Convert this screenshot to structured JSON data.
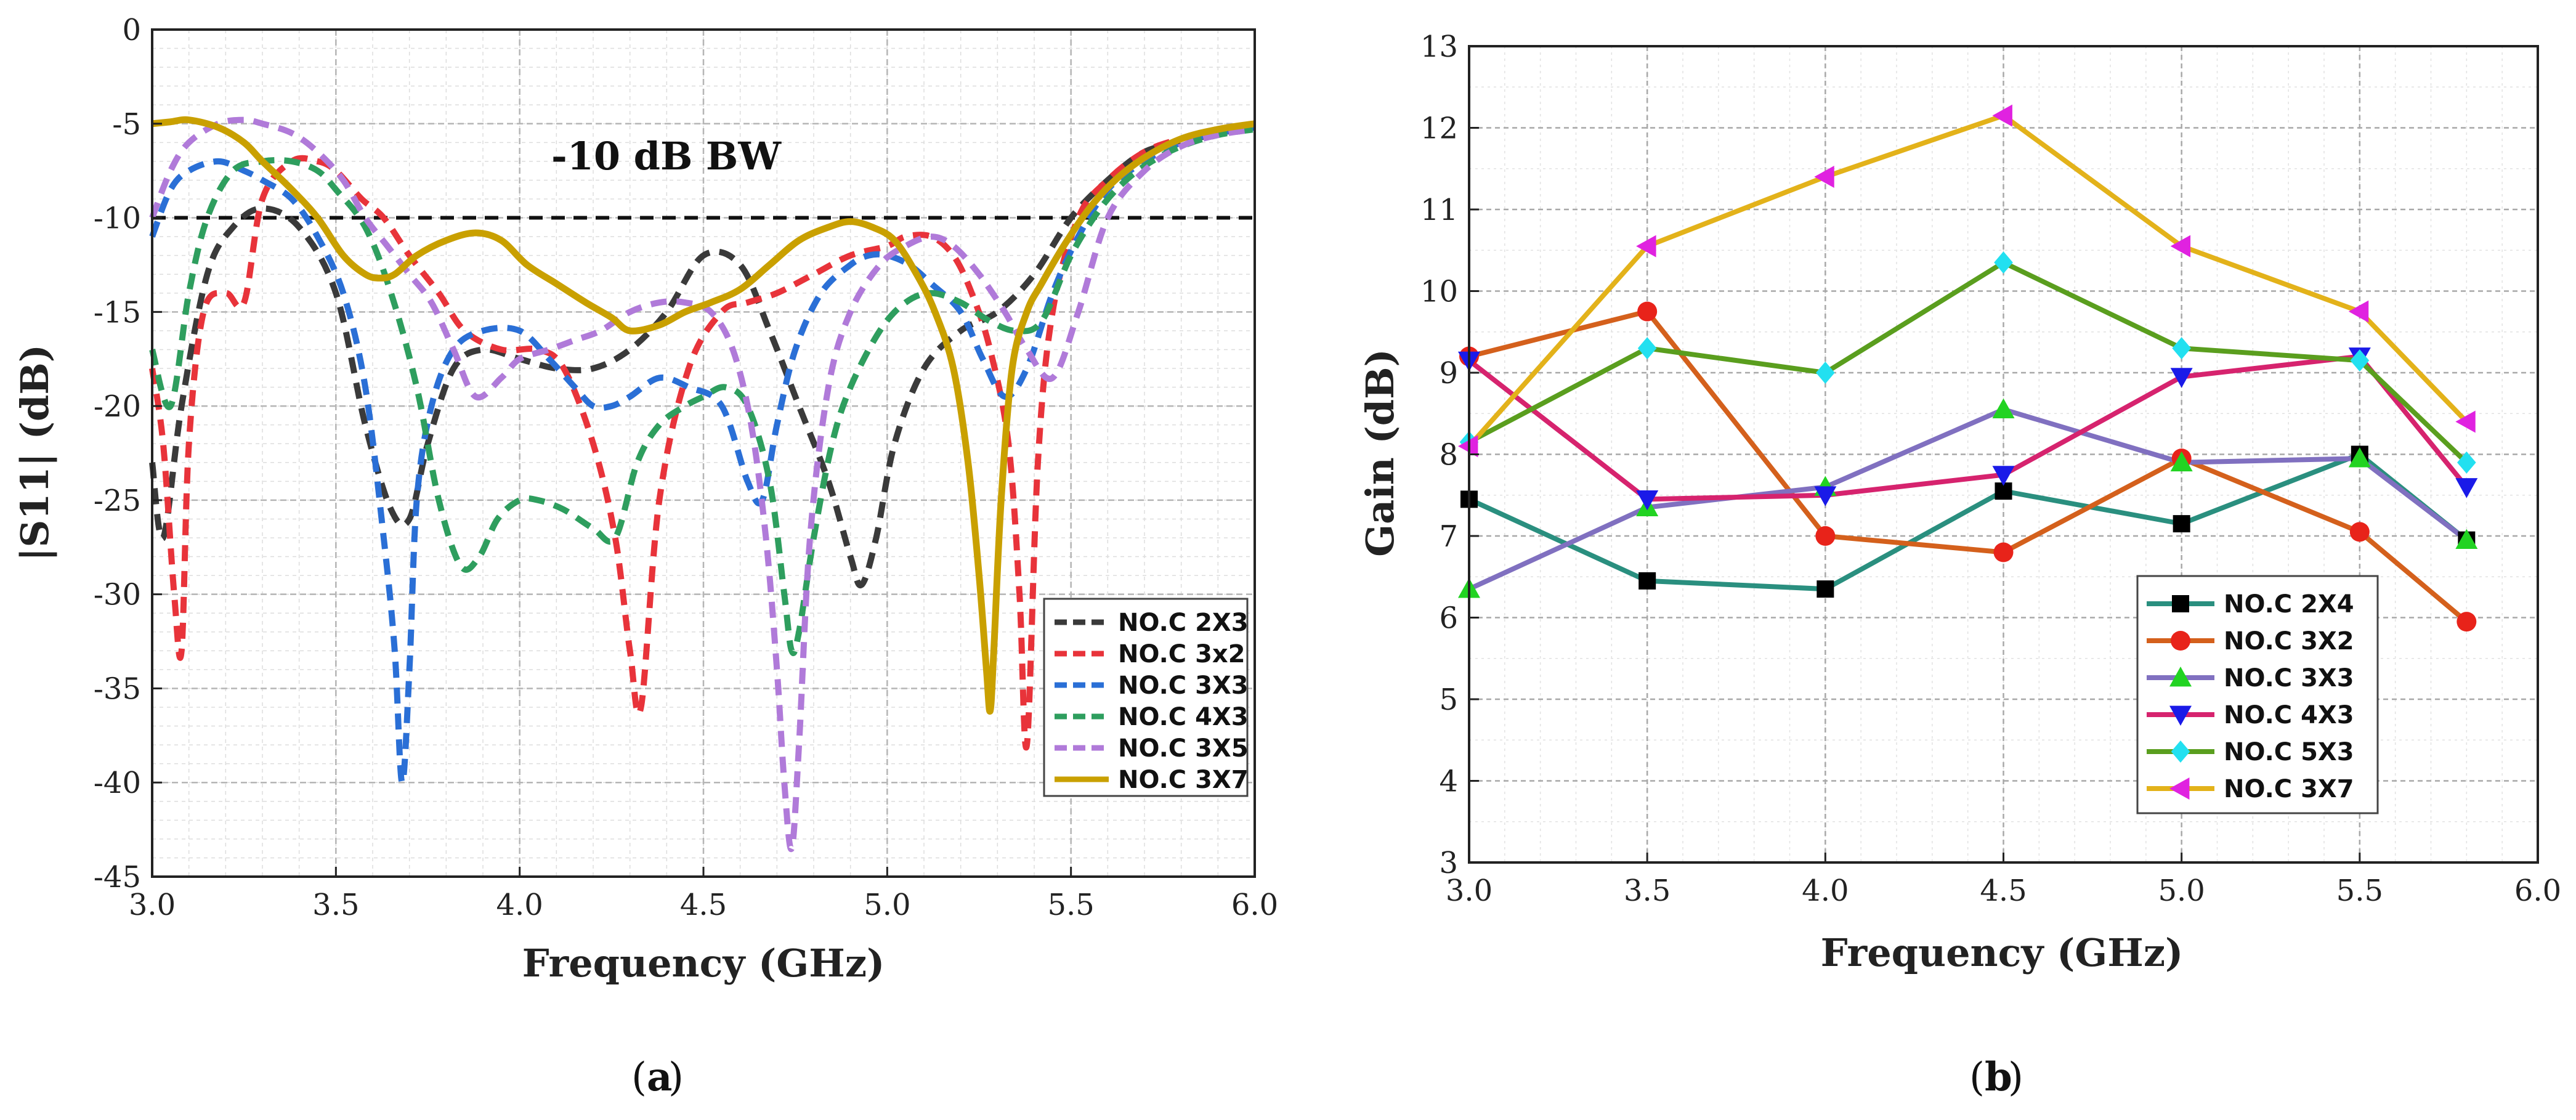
{
  "chart_data": [
    {
      "id": "a",
      "type": "line",
      "panel_label": "a",
      "xlabel": "Frequency (GHz)",
      "ylabel": "|S11| (dB)",
      "xlim": [
        3.0,
        6.0
      ],
      "ylim": [
        -45,
        0
      ],
      "x_ticks": [
        "3.0",
        "3.5",
        "4.0",
        "4.5",
        "5.0",
        "5.5",
        "6.0"
      ],
      "y_ticks": [
        "0",
        "-5",
        "-10",
        "-15",
        "-20",
        "-25",
        "-30",
        "-35",
        "-40",
        "-45"
      ],
      "grid": true,
      "reference_line": {
        "y": -10,
        "style": "dashed",
        "color": "#111111"
      },
      "annotation": "-10 dB BW",
      "legend_position": "bottom-right",
      "series": [
        {
          "name": "NO.C 2X3",
          "color": "#3a3a3a",
          "dash": "dashed",
          "x": [
            3.0,
            3.03,
            3.08,
            3.15,
            3.22,
            3.3,
            3.4,
            3.5,
            3.58,
            3.65,
            3.7,
            3.75,
            3.82,
            3.9,
            4.0,
            4.1,
            4.2,
            4.3,
            4.4,
            4.5,
            4.6,
            4.68,
            4.76,
            4.84,
            4.9,
            4.93,
            4.97,
            5.02,
            5.1,
            5.2,
            5.3,
            5.4,
            5.5,
            5.6,
            5.7,
            5.8,
            5.9,
            6.0
          ],
          "y": [
            -23,
            -27,
            -20,
            -13,
            -10.5,
            -9.5,
            -10.5,
            -14,
            -21,
            -25.5,
            -26,
            -22,
            -18,
            -17,
            -17.5,
            -18,
            -18,
            -17,
            -15,
            -12,
            -12.5,
            -16,
            -20,
            -24,
            -28,
            -29.5,
            -27,
            -22,
            -18,
            -16,
            -15,
            -13,
            -10,
            -8,
            -6.5,
            -6,
            -5.5,
            -5.2
          ]
        },
        {
          "name": "NO.C 3x2",
          "color": "#e8333a",
          "dash": "dashed",
          "x": [
            3.0,
            3.03,
            3.06,
            3.08,
            3.1,
            3.14,
            3.2,
            3.25,
            3.3,
            3.38,
            3.45,
            3.5,
            3.57,
            3.63,
            3.7,
            3.78,
            3.85,
            3.95,
            4.05,
            4.12,
            4.2,
            4.26,
            4.3,
            4.33,
            4.38,
            4.46,
            4.55,
            4.62,
            4.7,
            4.8,
            4.9,
            5.0,
            5.05,
            5.12,
            5.18,
            5.23,
            5.28,
            5.33,
            5.36,
            5.38,
            5.41,
            5.45,
            5.52,
            5.6,
            5.7,
            5.8,
            5.9,
            6.0
          ],
          "y": [
            -18,
            -22,
            -30,
            -33,
            -22,
            -15,
            -14,
            -14.5,
            -9,
            -7,
            -7,
            -7.5,
            -9,
            -10,
            -12,
            -14,
            -16,
            -17,
            -17,
            -18,
            -22,
            -27,
            -33,
            -36,
            -25,
            -18,
            -15,
            -14.5,
            -14,
            -13,
            -12,
            -11.5,
            -11,
            -11,
            -12,
            -14,
            -17,
            -22,
            -30,
            -38,
            -23,
            -15,
            -10,
            -8,
            -6.5,
            -5.8,
            -5.4,
            -5.2
          ]
        },
        {
          "name": "NO.C 3X3",
          "color": "#2a6fd6",
          "dash": "dashed",
          "x": [
            3.0,
            3.05,
            3.1,
            3.18,
            3.25,
            3.3,
            3.38,
            3.45,
            3.52,
            3.58,
            3.63,
            3.66,
            3.68,
            3.7,
            3.72,
            3.76,
            3.82,
            3.9,
            4.0,
            4.08,
            4.15,
            4.2,
            4.25,
            4.3,
            4.38,
            4.46,
            4.55,
            4.62,
            4.66,
            4.7,
            4.75,
            4.82,
            4.9,
            4.95,
            5.0,
            5.06,
            5.12,
            5.2,
            5.26,
            5.32,
            5.38,
            5.45,
            5.52,
            5.6,
            5.7,
            5.8,
            5.9,
            6.0
          ],
          "y": [
            -11,
            -8.5,
            -7.5,
            -7,
            -7.5,
            -8,
            -9,
            -11,
            -14,
            -19,
            -27,
            -33,
            -40,
            -34,
            -25,
            -20,
            -17,
            -16,
            -16,
            -17.5,
            -19,
            -20,
            -20,
            -19.5,
            -18.5,
            -19,
            -20,
            -24,
            -25,
            -21,
            -17,
            -14,
            -12.5,
            -12,
            -12,
            -12.5,
            -13.5,
            -15,
            -17.5,
            -19.5,
            -18,
            -14,
            -11,
            -8.5,
            -7,
            -6,
            -5.5,
            -5.2
          ]
        },
        {
          "name": "NO.C 4X3",
          "color": "#2e9e5e",
          "dash": "dashed",
          "x": [
            3.0,
            3.05,
            3.1,
            3.15,
            3.22,
            3.3,
            3.38,
            3.45,
            3.5,
            3.58,
            3.65,
            3.72,
            3.78,
            3.84,
            3.89,
            3.94,
            4.0,
            4.05,
            4.12,
            4.2,
            4.26,
            4.32,
            4.38,
            4.45,
            4.5,
            4.56,
            4.62,
            4.68,
            4.72,
            4.74,
            4.76,
            4.8,
            4.85,
            4.9,
            4.98,
            5.05,
            5.12,
            5.2,
            5.28,
            5.35,
            5.42,
            5.5,
            5.58,
            5.65,
            5.72,
            5.8,
            5.9,
            6.0
          ],
          "y": [
            -17,
            -20,
            -14,
            -10,
            -7.5,
            -7,
            -7,
            -7.5,
            -8.5,
            -10.5,
            -14,
            -19,
            -25,
            -28.5,
            -28,
            -26,
            -25,
            -25,
            -25.5,
            -26.5,
            -27,
            -23,
            -21,
            -20,
            -19.5,
            -19,
            -20,
            -24,
            -30,
            -33,
            -32,
            -27,
            -22,
            -19,
            -16,
            -14.5,
            -14,
            -14.5,
            -15.5,
            -16,
            -15.5,
            -12,
            -9.5,
            -8,
            -7,
            -6.2,
            -5.6,
            -5.3
          ]
        },
        {
          "name": "NO.C 3X5",
          "color": "#b07ad9",
          "dash": "dashed",
          "x": [
            3.0,
            3.05,
            3.1,
            3.18,
            3.25,
            3.3,
            3.38,
            3.45,
            3.52,
            3.58,
            3.64,
            3.7,
            3.76,
            3.82,
            3.88,
            3.95,
            4.0,
            4.08,
            4.15,
            4.22,
            4.3,
            4.38,
            4.45,
            4.52,
            4.58,
            4.63,
            4.67,
            4.7,
            4.72,
            4.74,
            4.76,
            4.79,
            4.84,
            4.9,
            4.98,
            5.05,
            5.12,
            5.18,
            5.25,
            5.32,
            5.38,
            5.45,
            5.52,
            5.6,
            5.7,
            5.8,
            5.9,
            6.0
          ],
          "y": [
            -10,
            -7.5,
            -6,
            -5,
            -4.8,
            -5,
            -5.5,
            -6.5,
            -8,
            -10,
            -11.5,
            -13,
            -14.5,
            -17,
            -19.5,
            -18.5,
            -17.5,
            -17,
            -16.5,
            -16,
            -15,
            -14.5,
            -14.5,
            -15,
            -17,
            -21,
            -27,
            -34,
            -40,
            -43.5,
            -38,
            -27,
            -19,
            -15,
            -12.5,
            -11.5,
            -11,
            -11.5,
            -13,
            -15,
            -17,
            -18.5,
            -15,
            -10,
            -7.5,
            -6.2,
            -5.6,
            -5.3
          ]
        },
        {
          "name": "NO.C 3X7",
          "color": "#c9a000",
          "dash": "solid",
          "x": [
            3.0,
            3.05,
            3.1,
            3.18,
            3.25,
            3.3,
            3.38,
            3.45,
            3.52,
            3.58,
            3.62,
            3.66,
            3.72,
            3.8,
            3.88,
            3.95,
            4.02,
            4.1,
            4.18,
            4.25,
            4.3,
            4.38,
            4.45,
            4.52,
            4.6,
            4.68,
            4.76,
            4.84,
            4.9,
            4.96,
            5.02,
            5.08,
            5.13,
            5.18,
            5.22,
            5.25,
            5.27,
            5.28,
            5.29,
            5.31,
            5.34,
            5.38,
            5.42,
            5.48,
            5.55,
            5.62,
            5.7,
            5.8,
            5.9,
            6.0
          ],
          "y": [
            -5,
            -4.9,
            -4.8,
            -5.2,
            -6,
            -7,
            -8.5,
            -10,
            -12,
            -13,
            -13.2,
            -13,
            -12,
            -11.2,
            -10.8,
            -11.2,
            -12.5,
            -13.5,
            -14.5,
            -15.3,
            -16,
            -15.7,
            -15,
            -14.5,
            -13.8,
            -12.5,
            -11.2,
            -10.5,
            -10.2,
            -10.5,
            -11.2,
            -13,
            -15,
            -18,
            -23,
            -29,
            -34,
            -36.2,
            -33,
            -25,
            -18,
            -15,
            -13.5,
            -11.5,
            -9.5,
            -8,
            -6.8,
            -5.8,
            -5.3,
            -5
          ]
        }
      ]
    },
    {
      "id": "b",
      "type": "line",
      "panel_label": "b",
      "xlabel": "Frequency (GHz)",
      "ylabel": "Gain (dB)",
      "xlim": [
        3.0,
        6.0
      ],
      "ylim": [
        3,
        13
      ],
      "x_ticks": [
        "3.0",
        "3.5",
        "4.0",
        "4.5",
        "5.0",
        "5.5",
        "6.0"
      ],
      "y_ticks": [
        "3",
        "4",
        "5",
        "6",
        "7",
        "8",
        "9",
        "10",
        "11",
        "12",
        "13"
      ],
      "grid": true,
      "legend_position": "bottom-right",
      "series": [
        {
          "name": "NO.C 2X4",
          "color": "#2a8f7f",
          "marker_color": "#000000",
          "marker": "square",
          "x": [
            3.0,
            3.5,
            4.0,
            4.5,
            5.0,
            5.5,
            5.8
          ],
          "y": [
            7.45,
            6.45,
            6.35,
            7.55,
            7.15,
            8.0,
            6.95
          ]
        },
        {
          "name": "NO.C 3X2",
          "color": "#d4601c",
          "marker_color": "#e8231a",
          "marker": "circle",
          "x": [
            3.0,
            3.5,
            4.0,
            4.5,
            5.0,
            5.5,
            5.8
          ],
          "y": [
            9.2,
            9.75,
            7.0,
            6.8,
            7.95,
            7.05,
            5.95
          ]
        },
        {
          "name": "NO.C 3X3",
          "color": "#8070c0",
          "marker_color": "#22d322",
          "marker": "triangle-up",
          "x": [
            3.0,
            3.5,
            4.0,
            4.5,
            5.0,
            5.5,
            5.8
          ],
          "y": [
            6.35,
            7.35,
            7.6,
            8.55,
            7.9,
            7.95,
            6.95
          ]
        },
        {
          "name": "NO.C 4X3",
          "color": "#d6236e",
          "marker_color": "#1a1ae8",
          "marker": "triangle-down",
          "x": [
            3.0,
            3.5,
            4.0,
            4.5,
            5.0,
            5.5,
            5.8
          ],
          "y": [
            9.15,
            7.45,
            7.5,
            7.75,
            8.95,
            9.2,
            7.6
          ]
        },
        {
          "name": "NO.C 5X3",
          "color": "#5a9e1e",
          "marker_color": "#22e0f0",
          "marker": "diamond",
          "x": [
            3.0,
            3.5,
            4.0,
            4.5,
            5.0,
            5.5,
            5.8
          ],
          "y": [
            8.15,
            9.3,
            9.0,
            10.35,
            9.3,
            9.15,
            7.9
          ]
        },
        {
          "name": "NO.C 3X7",
          "color": "#e3b21a",
          "marker_color": "#e022e0",
          "marker": "triangle-left",
          "x": [
            3.0,
            3.5,
            4.0,
            4.5,
            5.0,
            5.5,
            5.8
          ],
          "y": [
            8.1,
            10.55,
            11.4,
            12.15,
            10.55,
            9.75,
            8.4
          ]
        }
      ]
    }
  ]
}
